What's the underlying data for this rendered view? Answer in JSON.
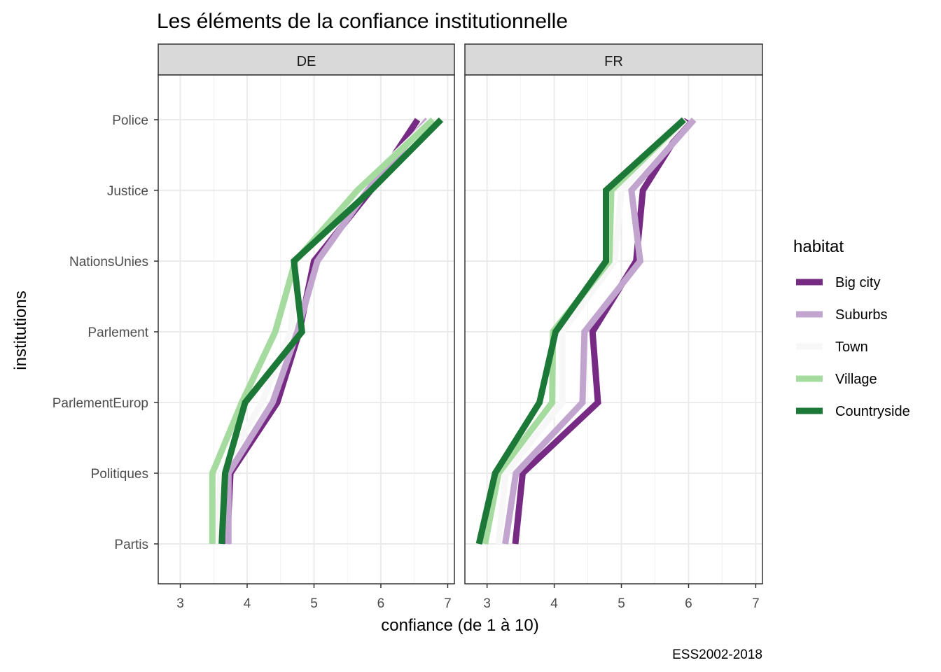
{
  "chart_data": {
    "type": "line",
    "title": "Les éléments de la confiance institutionnelle",
    "xlabel": "confiance (de 1 à 10)",
    "ylabel": "institutions",
    "caption": "ESS2002-2018",
    "xlim": [
      2.67,
      7.1
    ],
    "x_ticks": [
      "3",
      "4",
      "5",
      "6",
      "7"
    ],
    "categories": [
      "Police",
      "Justice",
      "NationsUnies",
      "Parlement",
      "ParlementEurop",
      "Politiques",
      "Partis"
    ],
    "legend": {
      "title": "habitat",
      "position": "right"
    },
    "grid": true,
    "colors": {
      "Big city": "#762a83",
      "Suburbs": "#c2a5cf",
      "Town": "#f7f7f7",
      "Village": "#a6dba0",
      "Countryside": "#1b7837"
    },
    "panels": [
      {
        "label": "DE",
        "series": [
          {
            "name": "Big city",
            "values": [
              6.55,
              5.85,
              5.0,
              4.78,
              4.45,
              3.75,
              3.7
            ]
          },
          {
            "name": "Suburbs",
            "values": [
              6.7,
              5.8,
              5.05,
              4.75,
              4.38,
              3.72,
              3.72
            ]
          },
          {
            "name": "Town",
            "values": [
              6.75,
              5.65,
              4.75,
              4.65,
              4.22,
              3.6,
              3.55
            ]
          },
          {
            "name": "Village",
            "values": [
              6.78,
              5.65,
              4.72,
              4.42,
              3.92,
              3.48,
              3.48
            ]
          },
          {
            "name": "Countryside",
            "values": [
              6.9,
              5.85,
              4.7,
              4.82,
              3.97,
              3.67,
              3.62
            ]
          }
        ]
      },
      {
        "label": "FR",
        "series": [
          {
            "name": "Big city",
            "values": [
              5.98,
              5.32,
              5.22,
              4.57,
              4.65,
              3.53,
              3.42
            ]
          },
          {
            "name": "Suburbs",
            "values": [
              6.08,
              5.15,
              5.28,
              4.45,
              4.42,
              3.43,
              3.27
            ]
          },
          {
            "name": "Town",
            "values": [
              5.95,
              5.0,
              4.9,
              4.12,
              4.12,
              3.28,
              3.17
            ]
          },
          {
            "name": "Village",
            "values": [
              5.93,
              4.85,
              4.82,
              3.98,
              3.97,
              3.17,
              2.97
            ]
          },
          {
            "name": "Countryside",
            "values": [
              5.93,
              4.77,
              4.77,
              4.02,
              3.78,
              3.12,
              2.88
            ]
          }
        ]
      }
    ]
  }
}
